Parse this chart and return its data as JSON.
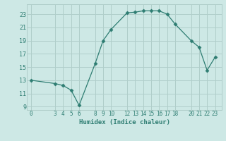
{
  "x": [
    0,
    3,
    4,
    5,
    6,
    8,
    9,
    10,
    12,
    13,
    14,
    15,
    16,
    17,
    18,
    20,
    21,
    22,
    23
  ],
  "y": [
    13,
    12.5,
    12.2,
    11.5,
    9.2,
    15.5,
    19.0,
    20.7,
    23.2,
    23.3,
    23.5,
    23.5,
    23.5,
    23.0,
    21.5,
    19.0,
    18.0,
    14.5,
    16.5
  ],
  "xticks": [
    0,
    3,
    4,
    5,
    6,
    8,
    9,
    10,
    12,
    13,
    14,
    15,
    16,
    17,
    18,
    20,
    21,
    22,
    23
  ],
  "yticks": [
    9,
    11,
    13,
    15,
    17,
    19,
    21,
    23
  ],
  "xlim": [
    -0.5,
    23.8
  ],
  "ylim": [
    8.5,
    24.5
  ],
  "xlabel": "Humidex (Indice chaleur)",
  "line_color": "#2e7d72",
  "marker": "D",
  "marker_size": 2.5,
  "bg_color": "#cde8e5",
  "grid_color": "#b0ceca",
  "tick_color": "#2e7d72",
  "label_color": "#2e7d72"
}
